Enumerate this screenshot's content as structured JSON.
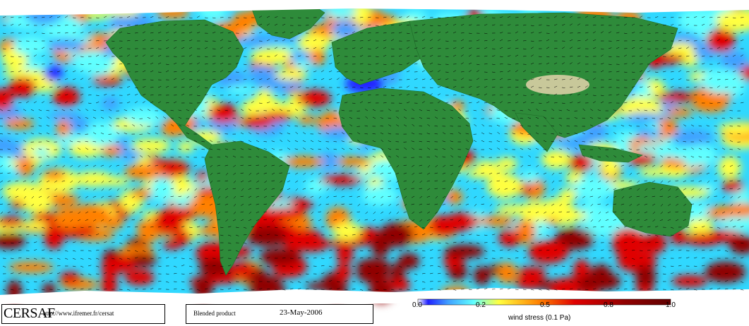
{
  "credit": {
    "brand": "CERSAF",
    "url": "http://www.ifremer.fr/cersat"
  },
  "product": {
    "label": "Blended product",
    "date": "23-May-2006"
  },
  "colorbar": {
    "title": "wind stress (0.1 Pa)",
    "ticks": [
      "0.0",
      "0.2",
      "0.5",
      "0.8",
      "1.0"
    ],
    "tick_values": [
      0.0,
      0.2,
      0.5,
      0.8,
      1.0
    ],
    "range": [
      0.0,
      1.0
    ],
    "colors": [
      "#2020ff",
      "#40a0ff",
      "#60ffff",
      "#ffff40",
      "#ff8000",
      "#e00000",
      "#900000"
    ]
  },
  "map": {
    "projection": "equirectangular",
    "land_color": "#2e8b3a",
    "ice_color": "#ffffff",
    "arrow_color": "#000000"
  }
}
